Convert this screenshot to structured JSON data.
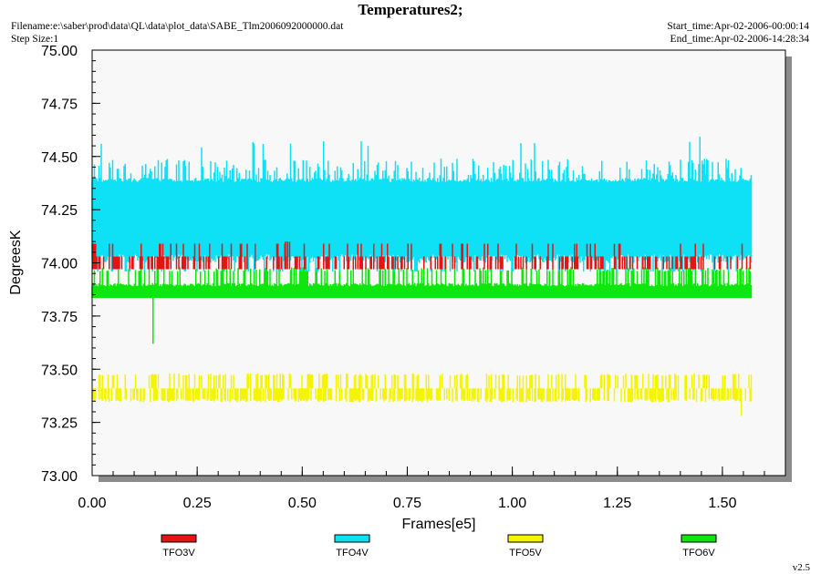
{
  "header": {
    "title": "Temperatures2;",
    "filename": "Filename:e:\\saber\\prod\\data\\QL\\data\\plot_data\\SABE_Tlm2006092000000.dat",
    "step_size": "Step Size:1",
    "start_time": "Start_time:Apr-02-2006-00:00:14",
    "end_time": "End_time:Apr-02-2006-14:28:34"
  },
  "version": "v2.5",
  "colors": {
    "TFO3V": "#e41414",
    "TFO4V": "#0ee0f5",
    "TFO5V": "#f5f500",
    "TFO6V": "#0ee60e",
    "plot_bg": "#f8f8f8",
    "shadow": "#8c8c8c"
  },
  "chart_data": {
    "type": "line",
    "title": "Temperatures2;",
    "xlabel": "Frames[e5]",
    "ylabel": "DegreesK",
    "xlim": [
      0.0,
      1.65
    ],
    "ylim": [
      73.0,
      75.0
    ],
    "x_ticks": [
      "0.00",
      "0.25",
      "0.50",
      "0.75",
      "1.00",
      "1.25",
      "1.50"
    ],
    "y_ticks": [
      "73.00",
      "73.25",
      "73.50",
      "73.75",
      "74.00",
      "74.25",
      "74.50",
      "74.75",
      "75.00"
    ],
    "x_data_range": [
      0.0,
      1.57
    ],
    "grid": false,
    "legend_position": "bottom",
    "series": [
      {
        "name": "TFO3V",
        "baseline": 73.97,
        "levels": [
          73.97,
          74.03,
          74.1
        ],
        "min": 73.97,
        "max": 74.1
      },
      {
        "name": "TFO4V",
        "baseline": 74.16,
        "levels": [
          73.97,
          74.03,
          74.1,
          74.16,
          74.22,
          74.28,
          74.35,
          74.41,
          74.47
        ],
        "min": 73.97,
        "max": 74.6
      },
      {
        "name": "TFO5V",
        "baseline": 73.41,
        "levels": [
          73.35,
          73.41,
          73.47
        ],
        "min": 73.28,
        "max": 73.47
      },
      {
        "name": "TFO6V",
        "baseline": 73.85,
        "levels": [
          73.85,
          73.91,
          73.97
        ],
        "min": 73.62,
        "max": 73.97
      }
    ]
  }
}
